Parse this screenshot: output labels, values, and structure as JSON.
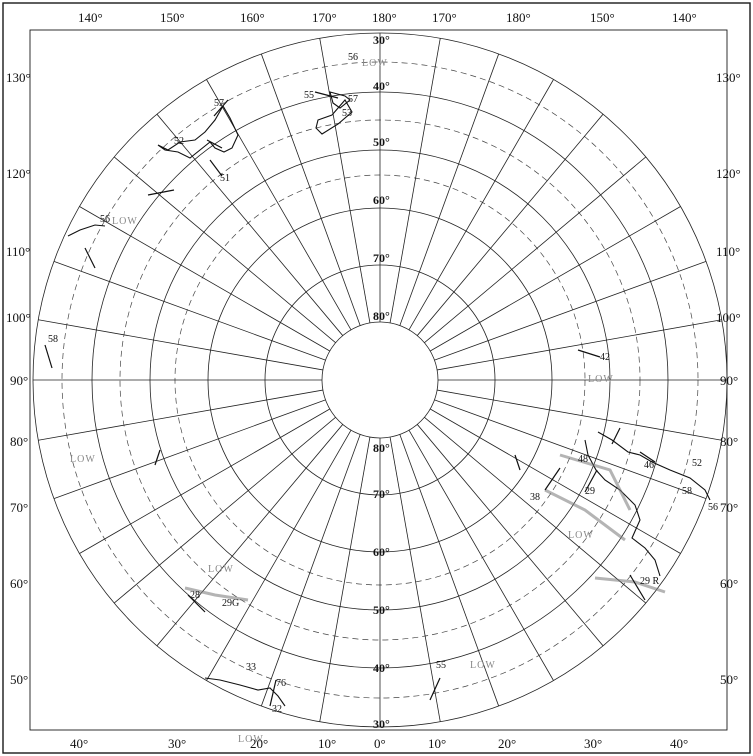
{
  "top_longitudes": [
    "140°",
    "150°",
    "160°",
    "170°",
    "180°",
    "170°",
    "180°",
    "150°",
    "140°"
  ],
  "bottom_longitudes": [
    "40°",
    "30°",
    "20°",
    "10°",
    "0°",
    "10°",
    "20°",
    "30°",
    "40°"
  ],
  "left_labels": [
    "130°",
    "120°",
    "110°",
    "100°",
    "90°",
    "80°",
    "70°",
    "60°",
    "50°"
  ],
  "right_labels": [
    "130°",
    "120°",
    "110°",
    "100°",
    "90°",
    "80°",
    "70°",
    "60°",
    "50°"
  ],
  "top_latitudes": [
    "30°",
    "40°",
    "50°",
    "60°",
    "70°",
    "80°"
  ],
  "bottom_latitudes": [
    "80°",
    "70°",
    "60°",
    "50°",
    "40°",
    "30°"
  ],
  "pressure_labels": [
    "LOW",
    "LOW",
    "LOW",
    "LOW",
    "LOW",
    "LOW",
    "LOW",
    "LOW"
  ],
  "station_values": [
    "56",
    "55",
    "57",
    "53",
    "57",
    "52",
    "51",
    "56",
    "58",
    "42",
    "46",
    "52",
    "58",
    "56",
    "28",
    "33",
    "76",
    "55",
    "32",
    "38",
    "48",
    "29"
  ],
  "side_values": [
    "29 R",
    "29G"
  ]
}
